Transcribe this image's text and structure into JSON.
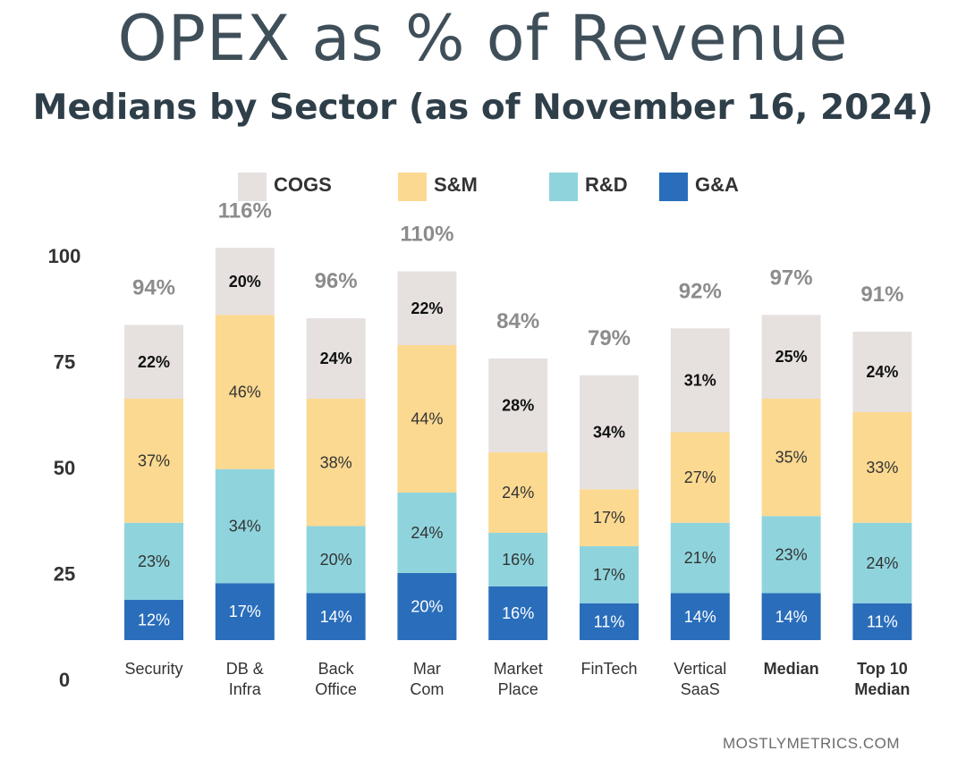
{
  "chart_data": {
    "type": "bar",
    "stacked": true,
    "title": "OPEX as % of Revenue",
    "subtitle": "Medians by Sector (as of November 16, 2024)",
    "source": "MOSTLYMETRICS.COM",
    "yticks": [
      0,
      25,
      50,
      75,
      100
    ],
    "ylim": [
      0,
      100
    ],
    "grid": false,
    "legend_position": "top",
    "categories": [
      {
        "label": [
          "Security"
        ],
        "bold": false
      },
      {
        "label": [
          "DB &",
          "Infra"
        ],
        "bold": false
      },
      {
        "label": [
          "Back",
          "Office"
        ],
        "bold": false
      },
      {
        "label": [
          "Mar",
          "Com"
        ],
        "bold": false
      },
      {
        "label": [
          "Market",
          "Place"
        ],
        "bold": false
      },
      {
        "label": [
          "FinTech"
        ],
        "bold": false
      },
      {
        "label": [
          "Vertical",
          "SaaS"
        ],
        "bold": false
      },
      {
        "label": [
          "Median"
        ],
        "bold": true
      },
      {
        "label": [
          "Top 10",
          "Median"
        ],
        "bold": true
      }
    ],
    "totals": [
      "94%",
      "116%",
      "96%",
      "110%",
      "84%",
      "79%",
      "92%",
      "97%",
      "91%"
    ],
    "series": [
      {
        "name": "G&A",
        "color": "#2a6ebb",
        "text_color": "#ffffff",
        "text_bold": false,
        "labels": [
          "12%",
          "17%",
          "14%",
          "20%",
          "16%",
          "11%",
          "14%",
          "14%",
          "11%"
        ]
      },
      {
        "name": "R&D",
        "color": "#8fd4dd",
        "text_color": "#333333",
        "text_bold": false,
        "labels": [
          "23%",
          "34%",
          "20%",
          "24%",
          "16%",
          "17%",
          "21%",
          "23%",
          "24%"
        ]
      },
      {
        "name": "S&M",
        "color": "#fbd991",
        "text_color": "#333333",
        "text_bold": false,
        "labels": [
          "37%",
          "46%",
          "38%",
          "44%",
          "24%",
          "17%",
          "27%",
          "35%",
          "33%"
        ]
      },
      {
        "name": "COGS",
        "color": "#e6e1df",
        "text_color": "#111111",
        "text_bold": true,
        "labels": [
          "22%",
          "20%",
          "24%",
          "22%",
          "28%",
          "34%",
          "31%",
          "25%",
          "24%"
        ]
      }
    ]
  }
}
